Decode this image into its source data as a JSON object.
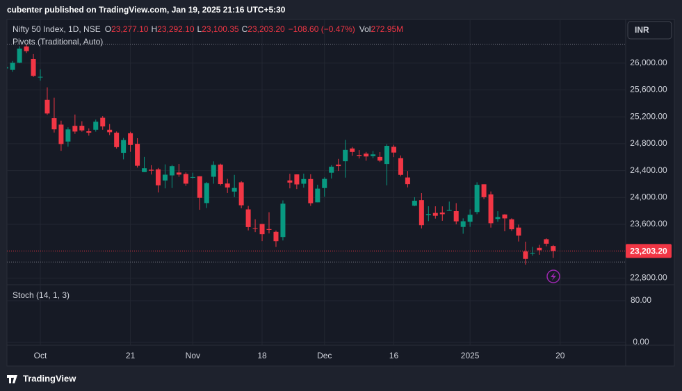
{
  "chart_data": {
    "type": "candlestick",
    "attribution": "cubenter published on TradingView.com, Jan 19, 2025 21:16 UTC+5:30",
    "symbol": "Nifty 50 Index, 1D, NSE",
    "ohlc_legend": [
      {
        "label": "O",
        "value": "23,277.10"
      },
      {
        "label": "H",
        "value": "23,292.10"
      },
      {
        "label": "L",
        "value": "23,100.35"
      },
      {
        "label": "C",
        "value": "23,203.20"
      }
    ],
    "change": "−108.60 (−0.47%)",
    "volume": {
      "label": "Vol",
      "value": "272.95M"
    },
    "indicator": "Pivots (Traditional, Auto)",
    "currency": "INR",
    "footer": "TradingView",
    "up_color": "#089981",
    "down_color": "#f23645",
    "categories": [
      null,
      null,
      null,
      null,
      null,
      "Oct",
      null,
      null,
      null,
      null,
      null,
      null,
      null,
      null,
      null,
      null,
      null,
      null,
      "21",
      null,
      null,
      null,
      null,
      null,
      null,
      null,
      null,
      "Nov",
      null,
      null,
      null,
      null,
      null,
      null,
      null,
      null,
      null,
      "18",
      null,
      null,
      null,
      null,
      null,
      null,
      null,
      null,
      "Dec",
      null,
      null,
      null,
      null,
      null,
      null,
      null,
      null,
      null,
      "16",
      null,
      null,
      null,
      null,
      null,
      null,
      null,
      null,
      null,
      null,
      "2025",
      null,
      null,
      null,
      null,
      null,
      null,
      null,
      null,
      null,
      null,
      null,
      null,
      "20"
    ],
    "open": [
      25921,
      25899,
      26005,
      26248,
      26061,
      25788,
      25453,
      25181,
      25084,
      24832,
      25066,
      25067,
      24985,
      25008,
      25186,
      25008,
      24964,
      24664,
      24956,
      24798,
      24378,
      24412,
      24418,
      24252,
      24328,
      24371,
      24349,
      24302,
      24315,
      23916,
      24308,
      24489,
      24207,
      24087,
      24225,
      23822,
      23542,
      23605,
      23529,
      23488,
      23411,
      24253,
      24343,
      24204,
      24274,
      23927,
      24140,
      24368,
      24489,
      24539,
      24729,
      24633,
      24652,
      24615,
      24604,
      24498,
      24754,
      24584,
      24297,
      23877,
      23960,
      23738,
      23769,
      23775,
      23801,
      23796,
      23561,
      23637,
      23783,
      24196,
      24045,
      23679,
      23746,
      23674,
      23551,
      23195,
      23165,
      23250,
      23378,
      23277.1,
      null
    ],
    "high": [
      26011,
      26032,
      26250,
      26277,
      26134,
      25907,
      25639,
      25485,
      25143,
      25044,
      25234,
      25134,
      25028,
      25159,
      25212,
      25093,
      24982,
      24886,
      24978,
      24882,
      24604,
      24480,
      24440,
      24492,
      24484,
      24499,
      24373,
      24368,
      24316,
      24229,
      24537,
      24503,
      24276,
      24336,
      24242,
      23873,
      23675,
      23606,
      23780,
      23507,
      23956,
      24351,
      24343,
      24354,
      24345,
      24189,
      24301,
      24481,
      24574,
      24857,
      24751,
      24705,
      24677,
      24691,
      24675,
      24792,
      24782,
      24625,
      24394,
      24004,
      24065,
      23869,
      23868,
      23867,
      23938,
      23915,
      23689,
      23822,
      24226,
      24196,
      24089,
      23795,
      23751,
      23689,
      23596,
      23341,
      23264,
      23294,
      23391,
      23292.1,
      null
    ],
    "low": [
      25886,
      25871,
      25998,
      26151,
      25794,
      25739,
      25230,
      24966,
      24694,
      24756,
      24947,
      24979,
      24920,
      24980,
      25008,
      24929,
      24728,
      24567,
      24679,
      24445,
      24378,
      24341,
      24074,
      24135,
      24140,
      24307,
      24172,
      24280,
      23816,
      23842,
      24204,
      24179,
      24066,
      24004,
      23839,
      23509,
      23484,
      23350,
      23464,
      23263,
      23359,
      24135,
      24125,
      24145,
      23874,
      23927,
      24009,
      24281,
      24395,
      24295,
      24620,
      24580,
      24546,
      24583,
      24527,
      24180,
      24601,
      24315,
      24149,
      23870,
      23538,
      23647,
      23685,
      23653,
      23800,
      23599,
      23460,
      23562,
      23751,
      23976,
      23551,
      23637,
      23496,
      23503,
      23344,
      22999,
      23134,
      23146,
      23273,
      23100.35,
      null
    ],
    "close": [
      25940,
      26004,
      26216,
      26178,
      25810,
      25796,
      25250,
      25014,
      24795,
      25013,
      24981,
      24998,
      24964,
      25127,
      25057,
      24971,
      24749,
      24854,
      24781,
      24472,
      24435,
      24399,
      24180,
      24339,
      24466,
      24340,
      24205,
      24304,
      23995,
      24213,
      24484,
      24199,
      24148,
      24141,
      23883,
      23559,
      23532,
      23453,
      23518,
      23349,
      23907,
      24221,
      24194,
      24274,
      23914,
      24131,
      24276,
      24457,
      24467,
      24708,
      24677,
      24619,
      24610,
      24641,
      24548,
      24768,
      24668,
      24336,
      24198,
      23951,
      23587,
      23753,
      23727,
      23750,
      23813,
      23644,
      23645,
      23742,
      24188,
      24004,
      23616,
      23707,
      23688,
      23526,
      23431,
      23085,
      23176,
      23213,
      23311,
      23203.2,
      null
    ],
    "pivot_lines": [
      26279,
      23038
    ],
    "last_price": {
      "value": 23203.2,
      "label": "23,203.20"
    },
    "ylim": [
      22700,
      26650
    ],
    "yticks": [
      {
        "value": 22800,
        "label": "22,800.00"
      },
      {
        "value": 23600,
        "label": "23,600.00"
      },
      {
        "value": 24000,
        "label": "24,000.00"
      },
      {
        "value": 24400,
        "label": "24,400.00"
      },
      {
        "value": 24800,
        "label": "24,800.00"
      },
      {
        "value": 25200,
        "label": "25,200.00"
      },
      {
        "value": 25600,
        "label": "25,600.00"
      },
      {
        "value": 26000,
        "label": "26,000.00"
      }
    ],
    "grid": true,
    "stoch": {
      "title": "Stoch (14, 1, 3)",
      "ylim": [
        -5.3,
        110.7
      ],
      "yticks": [
        {
          "value": 80,
          "label": "80.00"
        },
        {
          "value": 0,
          "label": "0.00"
        }
      ]
    }
  }
}
